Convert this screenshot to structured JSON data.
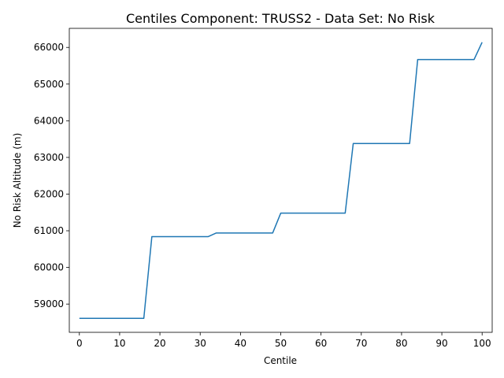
{
  "chart_data": {
    "type": "line",
    "title": "Centiles Component: TRUSS2 - Data Set: No Risk",
    "xlabel": "Centile",
    "ylabel": "No Risk Altitude (m)",
    "xlim": [
      -2.5,
      102.5
    ],
    "ylim": [
      58230,
      66520
    ],
    "xticks": [
      0,
      10,
      20,
      30,
      40,
      50,
      60,
      70,
      80,
      90,
      100
    ],
    "yticks": [
      59000,
      60000,
      61000,
      62000,
      63000,
      64000,
      65000,
      66000
    ],
    "grid": false,
    "series": [
      {
        "color": "#1f77b4",
        "x": [
          0,
          16,
          18,
          32,
          34,
          48,
          50,
          66,
          68,
          82,
          84,
          98,
          100
        ],
        "y": [
          58610,
          58610,
          60840,
          60840,
          60940,
          60940,
          61480,
          61480,
          63380,
          63380,
          65670,
          65670,
          66140
        ]
      }
    ]
  }
}
